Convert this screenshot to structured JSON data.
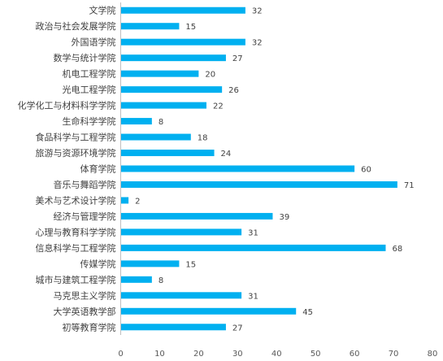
{
  "chart_data": {
    "type": "bar",
    "orientation": "horizontal",
    "title": "",
    "xlabel": "",
    "ylabel": "",
    "xlim": [
      0,
      80
    ],
    "x_ticks": [
      0,
      10,
      20,
      30,
      40,
      50,
      60,
      70,
      80
    ],
    "grid": false,
    "legend": "none",
    "bar_color": "#00b0f0",
    "categories": [
      "文学院",
      "政治与社会发展学院",
      "外国语学院",
      "数学与统计学院",
      "机电工程学院",
      "光电工程学院",
      "化学化工与材料科学学院",
      "生命科学学院",
      "食品科学与工程学院",
      "旅游与资源环境学院",
      "体育学院",
      "音乐与舞蹈学院",
      "美术与艺术设计学院",
      "经济与管理学院",
      "心理与教育科学学院",
      "信息科学与工程学院",
      "传媒学院",
      "城市与建筑工程学院",
      "马克思主义学院",
      "大学英语教学部",
      "初等教育学院"
    ],
    "values": [
      32,
      15,
      32,
      27,
      20,
      26,
      22,
      8,
      18,
      24,
      60,
      71,
      2,
      39,
      31,
      68,
      15,
      8,
      31,
      45,
      27
    ]
  }
}
